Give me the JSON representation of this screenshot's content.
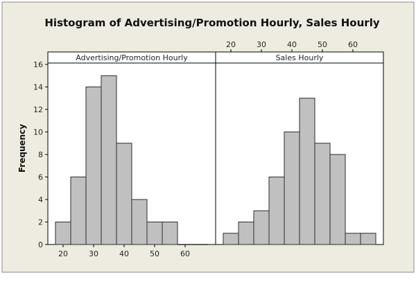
{
  "chart_data": {
    "type": "bar",
    "title": "Histogram of Advertising/Promotion Hourly, Sales Hourly",
    "ylabel": "Frequency",
    "ylim": [
      0,
      16
    ],
    "yticks": [
      0,
      2,
      4,
      6,
      8,
      10,
      12,
      14,
      16
    ],
    "xticks": [
      20,
      30,
      40,
      50,
      60
    ],
    "bin_width": 5,
    "panels": [
      {
        "label": "Advertising/Promotion Hourly",
        "x_axis_position": "bottom",
        "bins": [
          {
            "start": 17.5,
            "end": 22.5,
            "count": 2
          },
          {
            "start": 22.5,
            "end": 27.5,
            "count": 6
          },
          {
            "start": 27.5,
            "end": 32.5,
            "count": 14
          },
          {
            "start": 32.5,
            "end": 37.5,
            "count": 15
          },
          {
            "start": 37.5,
            "end": 42.5,
            "count": 9
          },
          {
            "start": 42.5,
            "end": 47.5,
            "count": 4
          },
          {
            "start": 47.5,
            "end": 52.5,
            "count": 2
          },
          {
            "start": 52.5,
            "end": 57.5,
            "count": 2
          },
          {
            "start": 57.5,
            "end": 62.5,
            "count": 0
          },
          {
            "start": 62.5,
            "end": 67.5,
            "count": 0
          }
        ]
      },
      {
        "label": "Sales Hourly",
        "x_axis_position": "top",
        "bins": [
          {
            "start": 17.5,
            "end": 22.5,
            "count": 1
          },
          {
            "start": 22.5,
            "end": 27.5,
            "count": 2
          },
          {
            "start": 27.5,
            "end": 32.5,
            "count": 3
          },
          {
            "start": 32.5,
            "end": 37.5,
            "count": 6
          },
          {
            "start": 37.5,
            "end": 42.5,
            "count": 10
          },
          {
            "start": 42.5,
            "end": 47.5,
            "count": 13
          },
          {
            "start": 47.5,
            "end": 52.5,
            "count": 9
          },
          {
            "start": 52.5,
            "end": 57.5,
            "count": 8
          },
          {
            "start": 57.5,
            "end": 62.5,
            "count": 1
          },
          {
            "start": 62.5,
            "end": 67.5,
            "count": 1
          }
        ]
      }
    ],
    "colors": {
      "background": "#eeece1",
      "plot": "#ffffff",
      "bar_fill": "#c0c0c0",
      "bar_stroke": "#2b2b2b",
      "axis": "#000000"
    }
  }
}
